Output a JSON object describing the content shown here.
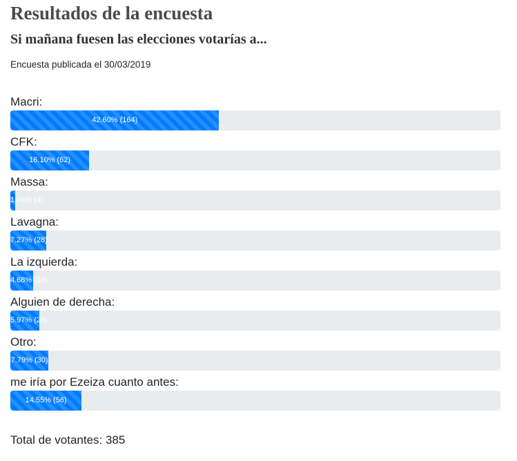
{
  "header": {
    "title": "Resultados de la encuesta",
    "question": "Si mañana fuesen las elecciones votarías a...",
    "published": "Encuesta publicada el 30/03/2019"
  },
  "results": [
    {
      "label": "Macri:",
      "percent": 42.6,
      "bar_text": "42.60% (164)"
    },
    {
      "label": "CFK:",
      "percent": 16.1,
      "bar_text": "16.10% (62)"
    },
    {
      "label": "Massa:",
      "percent": 1.04,
      "bar_text": "1.04% (4)"
    },
    {
      "label": "Lavagna:",
      "percent": 7.27,
      "bar_text": "7.27% (28)"
    },
    {
      "label": "La izquierda:",
      "percent": 4.68,
      "bar_text": "4.68% (18)"
    },
    {
      "label": "Alguien de derecha:",
      "percent": 5.97,
      "bar_text": "5.97% (23)"
    },
    {
      "label": "Otro:",
      "percent": 7.79,
      "bar_text": "7.79% (30)"
    },
    {
      "label": "me iría por Ezeiza cuanto antes:",
      "percent": 14.55,
      "bar_text": "14.55% (56)"
    }
  ],
  "footer": {
    "total_text": "Total de votantes: 385"
  },
  "colors": {
    "bar": "#007bff",
    "track": "#e9ecef"
  }
}
